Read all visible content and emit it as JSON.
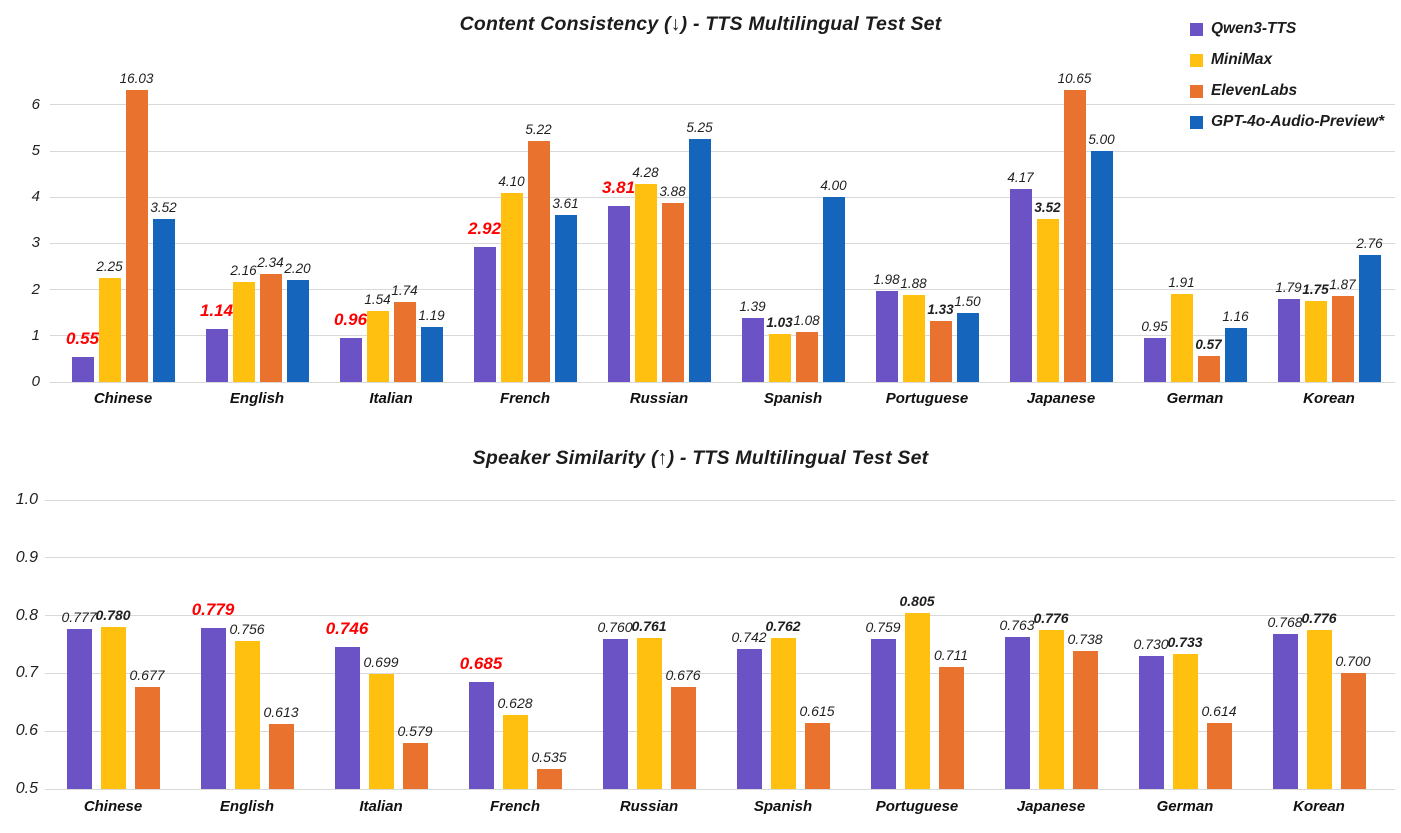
{
  "page": {
    "background": "#ffffff"
  },
  "colors": {
    "qwen3_tts": "#6B53C6",
    "minimax": "#FFC010",
    "elevenlabs": "#E8722E",
    "gpt4o_audio_preview": "#1565BD",
    "highlight_label": "#FE0000",
    "gridline": "#D9D9D9",
    "text": "#1F1F1F"
  },
  "legend": {
    "position": "top-right",
    "items": [
      {
        "label": "Qwen3-TTS",
        "color": "#6B53C6"
      },
      {
        "label": "MiniMax",
        "color": "#FFC010"
      },
      {
        "label": "ElevenLabs",
        "color": "#E8722E"
      },
      {
        "label": "GPT-4o-Audio-Preview*",
        "color": "#1565BD"
      }
    ]
  },
  "chart_data": [
    {
      "type": "bar",
      "title": "Content Consistency (↓) - TTS Multilingual Test Set",
      "better": "lower",
      "grid": true,
      "legend_position": "top-right",
      "categories": [
        "Chinese",
        "English",
        "Italian",
        "French",
        "Russian",
        "Spanish",
        "Portuguese",
        "Japanese",
        "German",
        "Korean"
      ],
      "yticks": [
        0,
        1,
        2,
        3,
        4,
        5,
        6
      ],
      "ylim": [
        0,
        6.32
      ],
      "clip_note": "ElevenLabs bars 16.03 (Chinese) and 10.65 (Japanese) are clipped at the top of the axis",
      "series": [
        {
          "name": "Qwen3-TTS",
          "color": "#6B53C6",
          "values": [
            0.55,
            1.14,
            0.96,
            2.92,
            3.81,
            1.39,
            1.98,
            4.17,
            0.95,
            1.79
          ],
          "labels": [
            "0.55",
            "1.14",
            "0.96",
            "2.92",
            "3.81",
            "1.39",
            "1.98",
            "4.17",
            "0.95",
            "1.79"
          ],
          "label_styles": [
            "red",
            "red",
            "red",
            "red",
            "red",
            "normal",
            "normal",
            "normal",
            "normal",
            "normal"
          ]
        },
        {
          "name": "MiniMax",
          "color": "#FFC010",
          "values": [
            2.25,
            2.16,
            1.54,
            4.1,
            4.28,
            1.03,
            1.88,
            3.52,
            1.91,
            1.75
          ],
          "labels": [
            "2.25",
            "2.16",
            "1.54",
            "4.10",
            "4.28",
            "1.03",
            "1.88",
            "3.52",
            "1.91",
            "1.75"
          ],
          "label_styles": [
            "normal",
            "normal",
            "normal",
            "normal",
            "normal",
            "bold",
            "normal",
            "bold",
            "normal",
            "bold"
          ]
        },
        {
          "name": "ElevenLabs",
          "color": "#E8722E",
          "values": [
            16.03,
            2.34,
            1.74,
            5.22,
            3.88,
            1.08,
            1.33,
            10.65,
            0.57,
            1.87
          ],
          "labels": [
            "16.03",
            "2.34",
            "1.74",
            "5.22",
            "3.88",
            "1.08",
            "1.33",
            "10.65",
            "0.57",
            "1.87"
          ],
          "label_styles": [
            "normal",
            "normal",
            "normal",
            "normal",
            "normal",
            "normal",
            "bold",
            "normal",
            "bold",
            "normal"
          ]
        },
        {
          "name": "GPT-4o-Audio-Preview*",
          "color": "#1565BD",
          "values": [
            3.52,
            2.2,
            1.19,
            3.61,
            5.25,
            4.0,
            1.5,
            5.0,
            1.16,
            2.76
          ],
          "labels": [
            "3.52",
            "2.20",
            "1.19",
            "3.61",
            "5.25",
            "4.00",
            "1.50",
            "5.00",
            "1.16",
            "2.76"
          ],
          "label_styles": [
            "normal",
            "normal",
            "normal",
            "normal",
            "normal",
            "normal",
            "normal",
            "normal",
            "normal",
            "normal"
          ]
        }
      ]
    },
    {
      "type": "bar",
      "title": "Speaker Similarity (↑) - TTS Multilingual Test Set",
      "better": "higher",
      "grid": true,
      "categories": [
        "Chinese",
        "English",
        "Italian",
        "French",
        "Russian",
        "Spanish",
        "Portuguese",
        "Japanese",
        "German",
        "Korean"
      ],
      "yticks": [
        0.5,
        0.6,
        0.7,
        0.8,
        0.9,
        1.0
      ],
      "ylim": [
        0.5,
        1.0
      ],
      "series": [
        {
          "name": "Qwen3-TTS",
          "color": "#6B53C6",
          "values": [
            0.777,
            0.779,
            0.746,
            0.685,
            0.76,
            0.742,
            0.759,
            0.763,
            0.73,
            0.768
          ],
          "labels": [
            "0.777",
            "0.779",
            "0.746",
            "0.685",
            "0.760",
            "0.742",
            "0.759",
            "0.763",
            "0.730",
            "0.768"
          ],
          "label_styles": [
            "normal",
            "red",
            "red",
            "red",
            "normal",
            "normal",
            "normal",
            "normal",
            "normal",
            "normal"
          ]
        },
        {
          "name": "MiniMax",
          "color": "#FFC010",
          "values": [
            0.78,
            0.756,
            0.699,
            0.628,
            0.761,
            0.762,
            0.805,
            0.776,
            0.733,
            0.776
          ],
          "labels": [
            "0.780",
            "0.756",
            "0.699",
            "0.628",
            "0.761",
            "0.762",
            "0.805",
            "0.776",
            "0.733",
            "0.776"
          ],
          "label_styles": [
            "bold",
            "normal",
            "normal",
            "normal",
            "bold",
            "bold",
            "bold",
            "bold",
            "bold",
            "bold"
          ]
        },
        {
          "name": "ElevenLabs",
          "color": "#E8722E",
          "values": [
            0.677,
            0.613,
            0.579,
            0.535,
            0.676,
            0.615,
            0.711,
            0.738,
            0.614,
            0.7
          ],
          "labels": [
            "0.677",
            "0.613",
            "0.579",
            "0.535",
            "0.676",
            "0.615",
            "0.711",
            "0.738",
            "0.614",
            "0.700"
          ],
          "label_styles": [
            "normal",
            "normal",
            "normal",
            "normal",
            "normal",
            "normal",
            "normal",
            "normal",
            "normal",
            "normal"
          ]
        }
      ]
    }
  ]
}
